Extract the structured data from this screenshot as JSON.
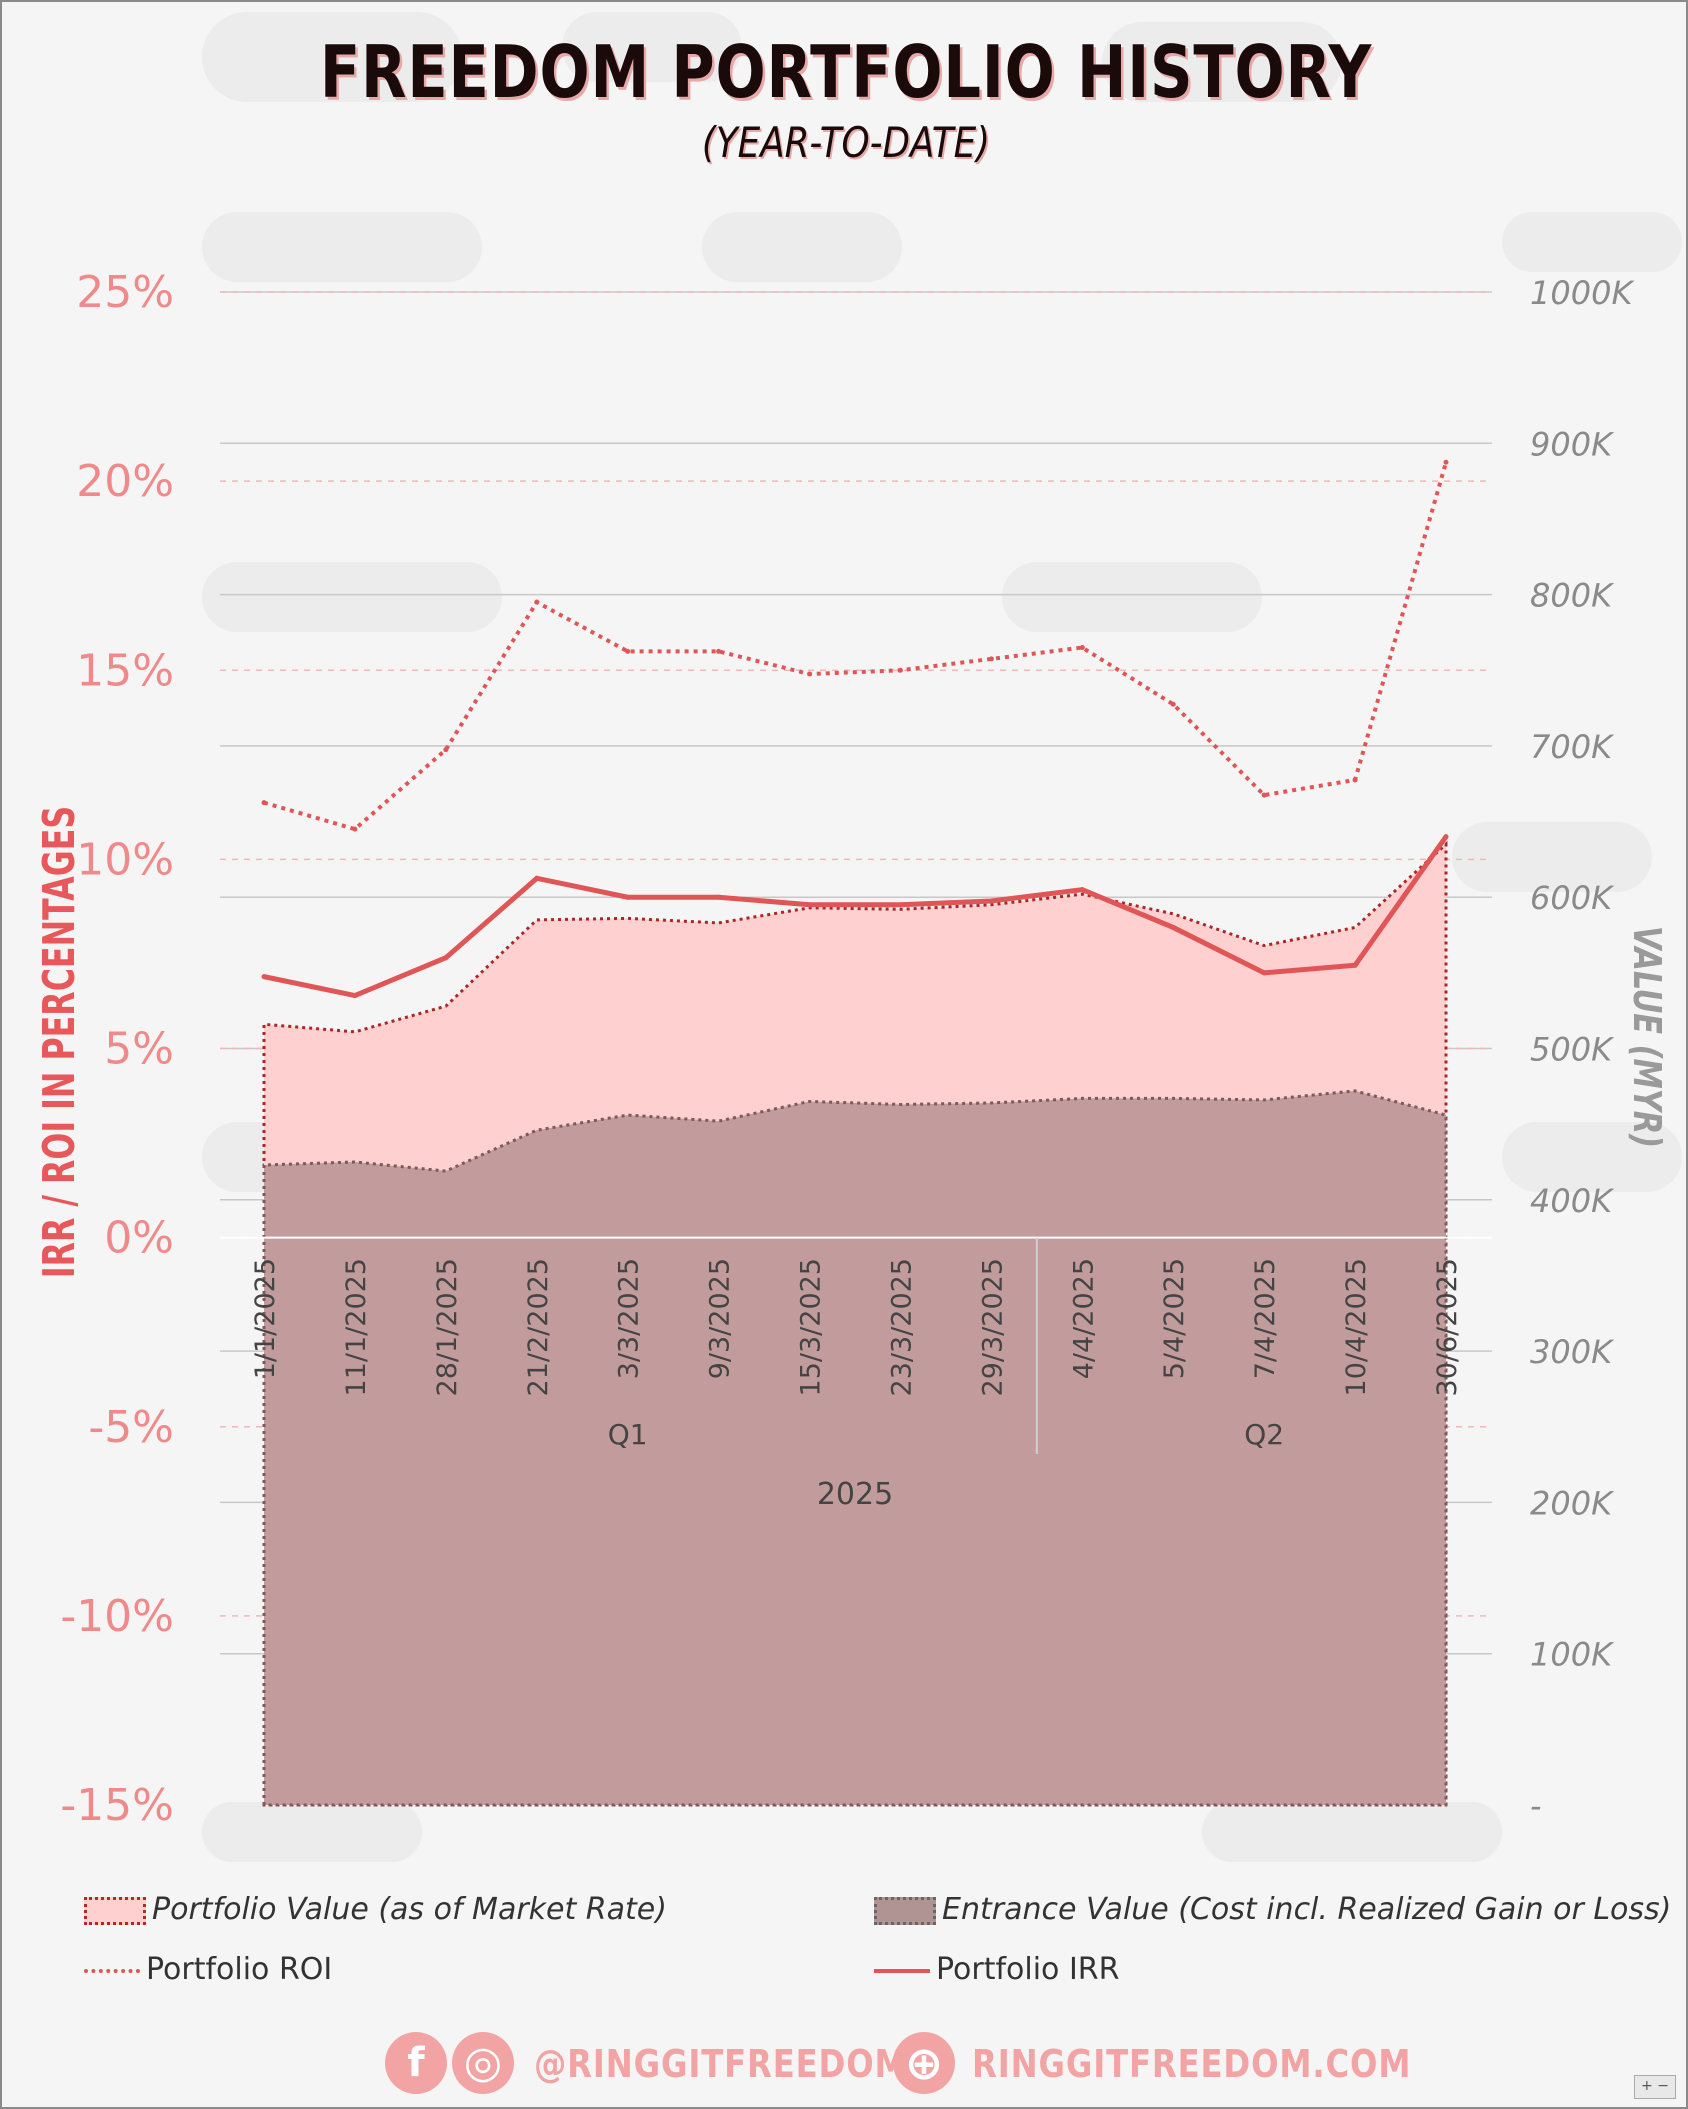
{
  "title": "FREEDOM PORTFOLIO HISTORY",
  "subtitle": "(YEAR-TO-DATE)",
  "chart_data": {
    "type": "area",
    "x": [
      "1/1/2025",
      "11/1/2025",
      "28/1/2025",
      "21/2/2025",
      "3/3/2025",
      "9/3/2025",
      "15/3/2025",
      "23/3/2025",
      "29/3/2025",
      "4/4/2025",
      "5/4/2025",
      "7/4/2025",
      "10/4/2025",
      "30/6/2025"
    ],
    "quarter_groups": [
      {
        "label": "Q1",
        "count": 9
      },
      {
        "label": "Q2",
        "count": 5
      }
    ],
    "year_label": "2025",
    "left_axis": {
      "label": "IRR / ROI IN PERCENTAGES",
      "ticks": [
        "25%",
        "20%",
        "15%",
        "10%",
        "5%",
        "0%",
        "-5%",
        "-10%",
        "-15%"
      ],
      "range": [
        -15,
        25
      ]
    },
    "right_axis": {
      "label": "VALUE (MYR)",
      "ticks": [
        "1000K",
        "900K",
        "800K",
        "700K",
        "600K",
        "500K",
        "400K",
        "300K",
        "200K",
        "100K",
        "-"
      ],
      "range": [
        0,
        1000
      ]
    },
    "series": [
      {
        "name": "Portfolio Value (as of Market Rate)",
        "axis": "right",
        "kind": "area",
        "color": "#ffd0d0",
        "values": [
          516,
          511,
          528,
          585,
          586,
          583,
          593,
          592,
          595,
          602,
          589,
          568,
          580,
          635
        ]
      },
      {
        "name": "Entrance Value (Cost incl. Realized Gain or Loss)",
        "axis": "right",
        "kind": "area",
        "color": "#c29c9c",
        "values": [
          423,
          425,
          419,
          446,
          456,
          452,
          465,
          463,
          464,
          467,
          467,
          466,
          472,
          456
        ]
      },
      {
        "name": "Portfolio ROI",
        "axis": "left",
        "kind": "line-dotted",
        "color": "#e05555",
        "values": [
          11.5,
          10.8,
          12.9,
          16.8,
          15.5,
          15.5,
          14.9,
          15.0,
          15.3,
          15.6,
          14.1,
          11.7,
          12.1,
          20.5
        ]
      },
      {
        "name": "Portfolio IRR",
        "axis": "left",
        "kind": "line",
        "color": "#e05555",
        "values": [
          6.9,
          6.4,
          7.4,
          9.5,
          9.0,
          9.0,
          8.8,
          8.8,
          8.9,
          9.2,
          8.2,
          7.0,
          7.2,
          10.6
        ]
      }
    ],
    "grid": true,
    "legend_position": "bottom"
  },
  "legend": [
    {
      "label": "Portfolio Value (as of Market Rate)",
      "icon": "pink-area-swatch"
    },
    {
      "label": "Entrance Value (Cost incl. Realized Gain or Loss)",
      "icon": "brown-area-swatch"
    },
    {
      "label": "Portfolio ROI",
      "icon": "dotted-line"
    },
    {
      "label": "Portfolio IRR",
      "icon": "solid-line"
    }
  ],
  "footer": {
    "social_handle": "@RINGGITFREEDOM",
    "website": "RINGGITFREEDOM.COM",
    "facebook_glyph": "f",
    "instagram_glyph": "◎",
    "globe_glyph": "⊕"
  },
  "zoom_control": "+ −"
}
